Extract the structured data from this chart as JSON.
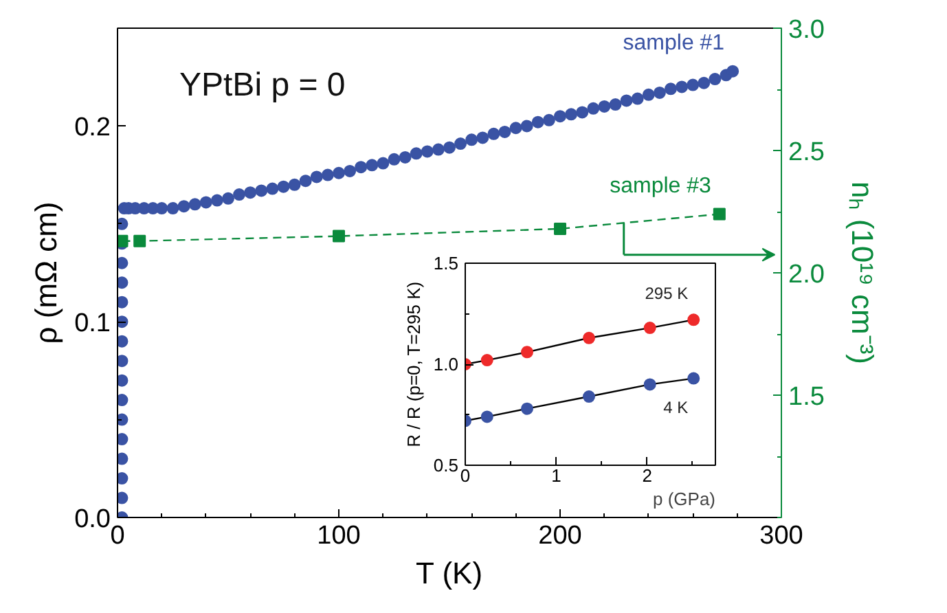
{
  "chart_data": [
    {
      "type": "line",
      "xlabel": "T (K)",
      "ylabel": "ρ (mΩ cm)",
      "y2label": "nₕ (10¹⁹ cm⁻³)",
      "annotations": [
        "YPtBi   p = 0"
      ],
      "xlim": [
        0,
        300
      ],
      "xticks": [
        0,
        100,
        200,
        300
      ],
      "ylim": [
        0,
        0.25
      ],
      "yticks": [
        {
          "value": 0,
          "label": "0.0"
        },
        {
          "value": 0.1,
          "label": "0.1"
        },
        {
          "value": 0.2,
          "label": "0.2"
        }
      ],
      "y2lim": [
        1.0,
        3.0
      ],
      "y2ticks": [
        {
          "value": 1.5,
          "label": "1.5"
        },
        {
          "value": 2.0,
          "label": "2.0"
        },
        {
          "value": 2.5,
          "label": "2.5"
        },
        {
          "value": 3.0,
          "label": "3.0"
        }
      ],
      "grid": false,
      "series": [
        {
          "name": "sample #1",
          "type": "scatter",
          "marker": "circle",
          "color": "#3a53a4",
          "x": [
            2,
            2,
            2,
            2,
            2,
            2,
            2,
            2,
            2,
            2,
            2,
            2,
            2,
            2,
            2,
            2,
            3,
            5,
            8,
            12,
            16,
            20,
            25,
            30,
            35,
            40,
            45,
            50,
            55,
            60,
            65,
            70,
            75,
            80,
            85,
            90,
            95,
            100,
            105,
            110,
            115,
            120,
            125,
            130,
            135,
            140,
            145,
            150,
            155,
            160,
            165,
            170,
            175,
            180,
            185,
            190,
            195,
            200,
            205,
            210,
            215,
            220,
            225,
            230,
            235,
            240,
            245,
            250,
            255,
            260,
            265,
            270,
            275,
            278
          ],
          "values": [
            0,
            0.01,
            0.02,
            0.03,
            0.04,
            0.05,
            0.06,
            0.07,
            0.08,
            0.09,
            0.1,
            0.11,
            0.12,
            0.13,
            0.14,
            0.15,
            0.158,
            0.158,
            0.158,
            0.158,
            0.158,
            0.158,
            0.158,
            0.159,
            0.16,
            0.161,
            0.162,
            0.163,
            0.165,
            0.166,
            0.167,
            0.168,
            0.169,
            0.17,
            0.172,
            0.174,
            0.175,
            0.176,
            0.177,
            0.179,
            0.18,
            0.181,
            0.183,
            0.184,
            0.186,
            0.187,
            0.188,
            0.189,
            0.191,
            0.193,
            0.194,
            0.196,
            0.197,
            0.199,
            0.2,
            0.202,
            0.203,
            0.205,
            0.206,
            0.207,
            0.209,
            0.21,
            0.211,
            0.213,
            0.214,
            0.216,
            0.217,
            0.219,
            0.22,
            0.221,
            0.222,
            0.224,
            0.226,
            0.228
          ]
        },
        {
          "name": "sample #3",
          "type": "line",
          "axis": "y2",
          "marker": "square",
          "line_style": "dashed",
          "color": "#0a8a3c",
          "x": [
            2,
            10,
            100,
            200,
            272
          ],
          "values": [
            2.13,
            2.13,
            2.15,
            2.18,
            2.24
          ]
        }
      ]
    },
    {
      "type": "line",
      "xlabel": "p (GPa)",
      "ylabel": "R / R (p=0, T=295 K)",
      "marker": "circle",
      "line_style": "solid",
      "xlim": [
        0,
        2.75
      ],
      "xticks": [
        0,
        1,
        2
      ],
      "ylim": [
        0.5,
        1.5
      ],
      "yticks": [
        {
          "value": 0.5,
          "label": "0.5"
        },
        {
          "value": 1.0,
          "label": "1.0"
        },
        {
          "value": 1.5,
          "label": "1.5"
        }
      ],
      "grid": false,
      "x": [
        0,
        0.24,
        0.68,
        1.36,
        2.03,
        2.51
      ],
      "series": [
        {
          "name": "295 K",
          "color": "#ee2a2a",
          "values": [
            1.0,
            1.02,
            1.06,
            1.13,
            1.18,
            1.22
          ]
        },
        {
          "name": "4 K",
          "color": "#3a53a4",
          "values": [
            0.72,
            0.74,
            0.78,
            0.84,
            0.9,
            0.93
          ]
        }
      ]
    }
  ]
}
